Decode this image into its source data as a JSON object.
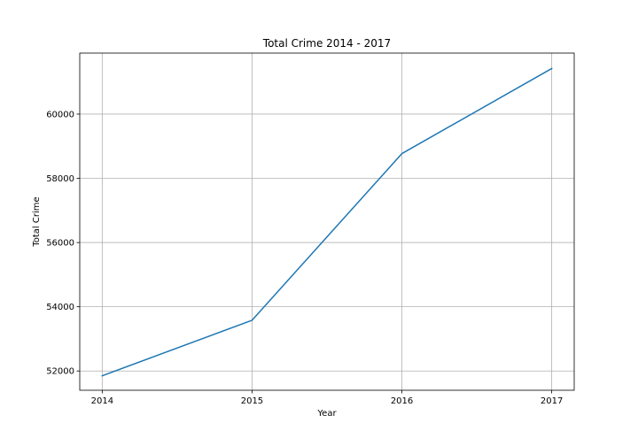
{
  "chart_data": {
    "type": "line",
    "title": "Total Crime 2014 - 2017",
    "xlabel": "Year",
    "ylabel": "Total Crime",
    "x": [
      2014,
      2015,
      2016,
      2017
    ],
    "x_tick_labels": [
      "2014",
      "2015",
      "2016",
      "2017"
    ],
    "series": [
      {
        "values": [
          51850,
          53580,
          58770,
          61420
        ],
        "color": "#1f77b4"
      }
    ],
    "xlim": [
      2013.85,
      2017.15
    ],
    "ylim": [
      51400,
      61900
    ],
    "y_ticks": [
      52000,
      54000,
      56000,
      58000,
      60000
    ],
    "y_tick_labels": [
      "52000",
      "54000",
      "56000",
      "58000",
      "60000"
    ],
    "grid": true,
    "legend": "none"
  }
}
